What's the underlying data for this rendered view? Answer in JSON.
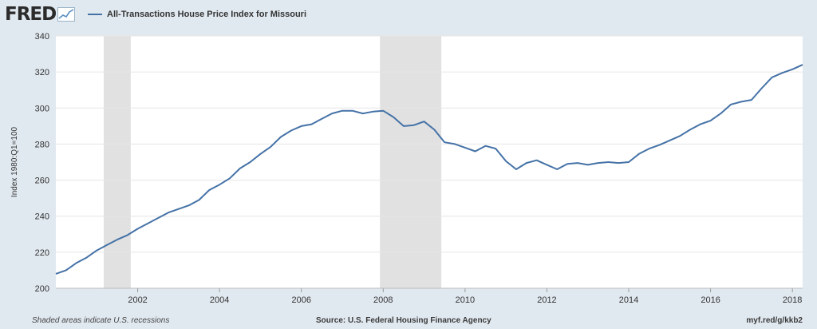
{
  "header": {
    "logo_text": "FRED",
    "legend_label": "All-Transactions House Price Index for Missouri",
    "line_color": "#4572a7"
  },
  "footer": {
    "note": "Shaded areas indicate U.S. recessions",
    "source": "Source: U.S. Federal Housing Finance Agency",
    "link": "myf.red/g/kkb2"
  },
  "chart_data": {
    "type": "line",
    "title": "",
    "xlabel": "",
    "ylabel": "Index 1980:Q1=100",
    "xlim": [
      2000.0,
      2018.25
    ],
    "ylim": [
      200,
      340
    ],
    "yticks": [
      200,
      220,
      240,
      260,
      280,
      300,
      320,
      340
    ],
    "xticks": [
      2002,
      2004,
      2006,
      2008,
      2010,
      2012,
      2014,
      2016,
      2018
    ],
    "grid": true,
    "recessions": [
      [
        2001.17,
        2001.83
      ],
      [
        2007.92,
        2009.42
      ]
    ],
    "series": [
      {
        "name": "All-Transactions House Price Index for Missouri",
        "x": [
          2000.0,
          2000.25,
          2000.5,
          2000.75,
          2001.0,
          2001.25,
          2001.5,
          2001.75,
          2002.0,
          2002.25,
          2002.5,
          2002.75,
          2003.0,
          2003.25,
          2003.5,
          2003.75,
          2004.0,
          2004.25,
          2004.5,
          2004.75,
          2005.0,
          2005.25,
          2005.5,
          2005.75,
          2006.0,
          2006.25,
          2006.5,
          2006.75,
          2007.0,
          2007.25,
          2007.5,
          2007.75,
          2008.0,
          2008.25,
          2008.5,
          2008.75,
          2009.0,
          2009.25,
          2009.5,
          2009.75,
          2010.0,
          2010.25,
          2010.5,
          2010.75,
          2011.0,
          2011.25,
          2011.5,
          2011.75,
          2012.0,
          2012.25,
          2012.5,
          2012.75,
          2013.0,
          2013.25,
          2013.5,
          2013.75,
          2014.0,
          2014.25,
          2014.5,
          2014.75,
          2015.0,
          2015.25,
          2015.5,
          2015.75,
          2016.0,
          2016.25,
          2016.5,
          2016.75,
          2017.0,
          2017.25,
          2017.5,
          2017.75,
          2018.0,
          2018.25
        ],
        "values": [
          208,
          210,
          214,
          217,
          221,
          224,
          227,
          229.5,
          233,
          236,
          239,
          242,
          244,
          246,
          249,
          254.5,
          257.5,
          261,
          266.5,
          270,
          274.5,
          278.5,
          284,
          287.5,
          290,
          291,
          294,
          297,
          298.5,
          298.5,
          297,
          298,
          298.5,
          295,
          290,
          290.5,
          292.5,
          288,
          281,
          280,
          278,
          276,
          279,
          277.5,
          270.5,
          266,
          269.5,
          271,
          268.5,
          266,
          269,
          269.5,
          268.5,
          269.5,
          270,
          269.5,
          270,
          274.5,
          277.5,
          279.5,
          282,
          284.5,
          288,
          291,
          293,
          297,
          302,
          303.5,
          304.5,
          311,
          317,
          319.5,
          321.5,
          324
        ]
      }
    ]
  }
}
